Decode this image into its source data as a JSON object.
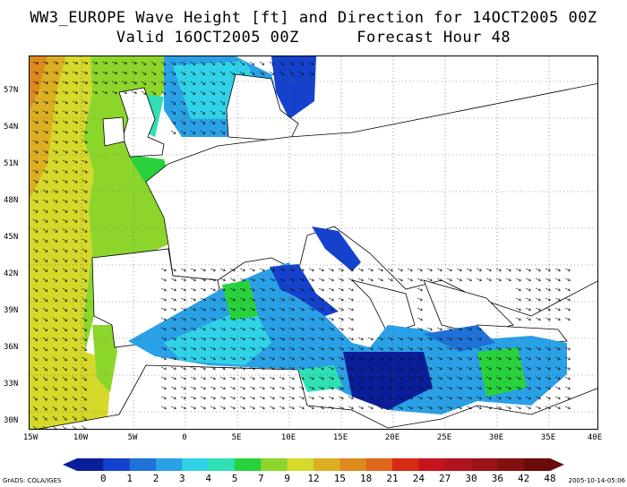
{
  "header": {
    "title_line1": "WW3_EUROPE Wave Height [ft] and Direction for 14OCT2005 00Z",
    "title_line2": "Valid 16OCT2005 00Z      Forecast Hour 48"
  },
  "map": {
    "lon_range": [
      -15,
      40
    ],
    "lat_range": [
      28.5,
      59
    ],
    "lat_ticks": [
      "30N",
      "33N",
      "36N",
      "39N",
      "42N",
      "45N",
      "48N",
      "51N",
      "54N",
      "57N"
    ],
    "lon_ticks": [
      "15W",
      "10W",
      "5W",
      "0",
      "5E",
      "10E",
      "15E",
      "20E",
      "25E",
      "30E",
      "35E",
      "40E"
    ],
    "gridlines": "dotted"
  },
  "colorbar": {
    "levels": [
      "0",
      "1",
      "2",
      "3",
      "4",
      "5",
      "7",
      "9",
      "12",
      "15",
      "18",
      "21",
      "24",
      "27",
      "30",
      "36",
      "42",
      "48"
    ],
    "colors": [
      "#0a1e9a",
      "#1542cc",
      "#1e72d8",
      "#2aa0e6",
      "#30d2e8",
      "#2ee0b4",
      "#28d23c",
      "#8cd62c",
      "#d6d82a",
      "#dcae22",
      "#dc8a1e",
      "#dc661a",
      "#d82a14",
      "#c4141e",
      "#b0141e",
      "#9a1418",
      "#82100e",
      "#6a0a0a"
    ]
  },
  "footer": {
    "left": "GrADS: COLA/IGES",
    "right": "2005-10-14-05:06"
  }
}
